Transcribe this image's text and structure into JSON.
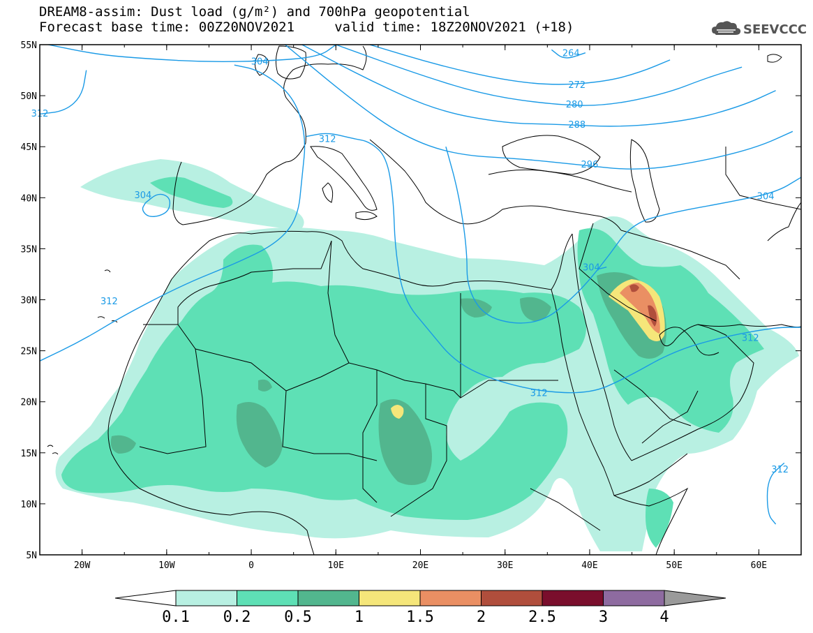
{
  "title": {
    "line1": "DREAM8-assim: Dust load (g/m²) and 700hPa geopotential",
    "line2": "Forecast base time: 00Z20NOV2021     valid time: 18Z20NOV2021 (+18)"
  },
  "logo": {
    "text": "SEEVCCC",
    "icon": "cloud-icon"
  },
  "axes": {
    "lon_range": [
      -25,
      65
    ],
    "lat_range": [
      5,
      55
    ],
    "x_ticks": [
      {
        "lon": -20,
        "label": "20W"
      },
      {
        "lon": -10,
        "label": "10W"
      },
      {
        "lon": 0,
        "label": "0"
      },
      {
        "lon": 10,
        "label": "10E"
      },
      {
        "lon": 20,
        "label": "20E"
      },
      {
        "lon": 30,
        "label": "30E"
      },
      {
        "lon": 40,
        "label": "40E"
      },
      {
        "lon": 50,
        "label": "50E"
      },
      {
        "lon": 60,
        "label": "60E"
      }
    ],
    "y_ticks": [
      {
        "lat": 55,
        "label": "55N"
      },
      {
        "lat": 50,
        "label": "50N"
      },
      {
        "lat": 45,
        "label": "45N"
      },
      {
        "lat": 40,
        "label": "40N"
      },
      {
        "lat": 35,
        "label": "35N"
      },
      {
        "lat": 30,
        "label": "30N"
      },
      {
        "lat": 25,
        "label": "25N"
      },
      {
        "lat": 20,
        "label": "20N"
      },
      {
        "lat": 15,
        "label": "15N"
      },
      {
        "lat": 10,
        "label": "10N"
      },
      {
        "lat": 5,
        "label": "5N"
      }
    ]
  },
  "colorbar": {
    "labels": [
      "0.1",
      "0.2",
      "0.5",
      "1",
      "1.5",
      "2",
      "2.5",
      "3",
      "4"
    ],
    "colors": [
      "#ffffff",
      "#b8f0e2",
      "#5ee0b5",
      "#52b68e",
      "#f5e67a",
      "#ea8f63",
      "#b04e3c",
      "#7a0e2c",
      "#8e6ba0",
      "#9a9a9a"
    ]
  },
  "dust_colors": {
    "level_0_1": "#b8f0e2",
    "level_0_2": "#5ee0b5",
    "level_0_5": "#52b68e",
    "level_1": "#f5e67a",
    "level_1_5": "#ea8f63",
    "level_2": "#b04e3c"
  },
  "contour_color": "#1a9ae6",
  "contours": [
    {
      "value": "264",
      "label_lonlat": [
        37.5,
        54.2
      ],
      "points": [
        [
          35.5,
          54.5
        ],
        [
          37,
          53.5
        ],
        [
          39.5,
          54.2
        ]
      ]
    },
    {
      "value": "272",
      "label_lonlat": [
        38,
        51.1
      ],
      "points": [
        [
          14,
          55
        ],
        [
          22,
          53
        ],
        [
          30,
          51.5
        ],
        [
          36,
          51
        ],
        [
          42,
          51.4
        ],
        [
          46,
          52.3
        ],
        [
          49.5,
          53.5
        ]
      ]
    },
    {
      "value": "280",
      "label_lonlat": [
        38,
        49.1
      ],
      "points": [
        [
          10,
          55
        ],
        [
          20,
          52
        ],
        [
          28,
          50
        ],
        [
          36,
          49.1
        ],
        [
          42,
          49
        ],
        [
          49,
          50.2
        ],
        [
          54,
          51.8
        ],
        [
          58,
          52.8
        ]
      ]
    },
    {
      "value": "288",
      "label_lonlat": [
        38.2,
        47.2
      ],
      "points": [
        [
          6,
          55
        ],
        [
          14,
          51.5
        ],
        [
          22,
          48.5
        ],
        [
          30,
          47.3
        ],
        [
          36,
          47.2
        ],
        [
          44,
          46.9
        ],
        [
          52,
          47.6
        ],
        [
          58,
          49
        ],
        [
          62,
          50.5
        ]
      ]
    },
    {
      "value": "296",
      "label_lonlat": [
        40,
        43.3
      ],
      "points": [
        [
          4,
          55
        ],
        [
          12,
          49.5
        ],
        [
          18,
          46
        ],
        [
          24,
          44.2
        ],
        [
          32,
          43.8
        ],
        [
          38,
          43.3
        ],
        [
          46,
          42.6
        ],
        [
          54,
          43.7
        ],
        [
          60,
          45
        ],
        [
          64,
          46.5
        ]
      ]
    },
    {
      "value": "304",
      "label_lonlat": [
        0.5,
        53.4
      ],
      "points": [
        [
          -24,
          55
        ],
        [
          -18,
          54
        ],
        [
          -12,
          53.6
        ],
        [
          -5,
          53.3
        ],
        [
          2,
          53.4
        ],
        [
          8,
          53.8
        ],
        [
          10,
          55
        ]
      ]
    },
    {
      "value": "312",
      "label_lonlat": [
        10,
        45.7
      ],
      "points": [
        [
          -2,
          53
        ],
        [
          1,
          52.5
        ],
        [
          5,
          50
        ],
        [
          6.5,
          46
        ],
        [
          6,
          42
        ],
        [
          5.5,
          38
        ],
        [
          3,
          35.5
        ],
        [
          -2,
          33.5
        ],
        [
          -8,
          31.5
        ],
        [
          -15,
          28.5
        ],
        [
          -20,
          26
        ],
        [
          -25,
          24
        ]
      ]
    },
    {
      "value": "312",
      "label_lonlat": [
        10,
        45.7
      ],
      "points": [
        [
          6.5,
          46
        ],
        [
          9,
          46.4
        ],
        [
          12,
          45.8
        ],
        [
          14,
          45.5
        ],
        [
          16,
          44
        ],
        [
          16.8,
          40
        ],
        [
          17,
          35
        ],
        [
          18,
          30
        ],
        [
          21,
          27
        ],
        [
          24,
          24
        ],
        [
          28,
          22.3
        ],
        [
          34,
          21
        ],
        [
          40,
          20.8
        ],
        [
          44,
          22.2
        ],
        [
          50,
          25
        ],
        [
          56,
          26.4
        ],
        [
          62,
          27.3
        ],
        [
          65,
          27.3
        ]
      ]
    },
    {
      "value": "312",
      "label_lonlat": [
        -25,
        48.3
      ],
      "points": [
        [
          -25,
          48.2
        ],
        [
          -22,
          48.5
        ],
        [
          -20,
          50
        ],
        [
          -19.5,
          52.5
        ]
      ]
    },
    {
      "value": "304",
      "label_lonlat": [
        -11.5,
        40.4
      ],
      "points": [
        [
          -12.5,
          39.5
        ],
        [
          -11,
          40.5
        ],
        [
          -9.5,
          40
        ],
        [
          -9.8,
          38.5
        ],
        [
          -12,
          38
        ],
        [
          -13,
          38.8
        ],
        [
          -12.5,
          39.5
        ]
      ]
    },
    {
      "value": "304",
      "label_lonlat": [
        60.5,
        40.4
      ],
      "points": [
        [
          65,
          42
        ],
        [
          62,
          40.5
        ],
        [
          56,
          39.5
        ],
        [
          50,
          38.6
        ],
        [
          45,
          37.5
        ],
        [
          42,
          34
        ],
        [
          38.5,
          30.5
        ],
        [
          34,
          27.5
        ],
        [
          28,
          28
        ],
        [
          25.5,
          31
        ],
        [
          25.5,
          35
        ],
        [
          24.5,
          40.5
        ],
        [
          23,
          45
        ]
      ]
    },
    {
      "value": "304",
      "label_lonlat": [
        41,
        33
      ],
      "points": [
        [
          41,
          33
        ],
        [
          42,
          33.2
        ]
      ]
    },
    {
      "value": "312",
      "label_lonlat": [
        62.5,
        13.4
      ],
      "points": [
        [
          63,
          14
        ],
        [
          61,
          12.5
        ],
        [
          61,
          9
        ],
        [
          62,
          8
        ]
      ]
    }
  ],
  "contour_labels": [
    {
      "text": "264",
      "lonlat": [
        37.8,
        54.2
      ]
    },
    {
      "text": "272",
      "lonlat": [
        38.5,
        51.1
      ]
    },
    {
      "text": "280",
      "lonlat": [
        38.2,
        49.2
      ]
    },
    {
      "text": "288",
      "lonlat": [
        38.5,
        47.2
      ]
    },
    {
      "text": "296",
      "lonlat": [
        40,
        43.3
      ]
    },
    {
      "text": "304",
      "lonlat": [
        1,
        53.4
      ]
    },
    {
      "text": "312",
      "lonlat": [
        9,
        45.8
      ]
    },
    {
      "text": "312",
      "lonlat": [
        -25,
        48.3
      ]
    },
    {
      "text": "304",
      "lonlat": [
        -12.8,
        40.3
      ]
    },
    {
      "text": "304",
      "lonlat": [
        60.8,
        40.2
      ]
    },
    {
      "text": "304",
      "lonlat": [
        40.2,
        33.2
      ]
    },
    {
      "text": "312",
      "lonlat": [
        -16.8,
        29.9
      ]
    },
    {
      "text": "312",
      "lonlat": [
        34,
        20.9
      ]
    },
    {
      "text": "312",
      "lonlat": [
        59,
        26.3
      ]
    },
    {
      "text": "312",
      "lonlat": [
        62.5,
        13.4
      ]
    }
  ]
}
